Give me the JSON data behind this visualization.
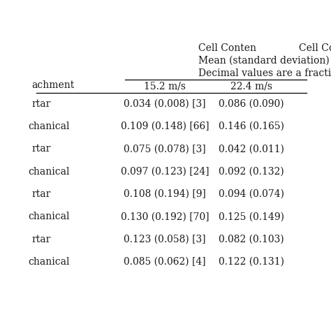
{
  "title_line1": "Cell Conten",
  "header1": "Mean (standard deviation)",
  "header2": "Decimal values are a fraction",
  "col_headers": [
    "15.2 m/s",
    "22.4 m/s"
  ],
  "row_labels": [
    "rtar",
    "chanical",
    "rtar",
    "chanical",
    "rtar",
    "chanical",
    "rtar",
    "chanical"
  ],
  "col1_data": [
    "0.034 (0.008) [3]",
    "0.109 (0.148) [66]",
    "0.075 (0.078) [3]",
    "0.097 (0.123) [24]",
    "0.108 (0.194) [9]",
    "0.130 (0.192) [70]",
    "0.123 (0.058) [3]",
    "0.085 (0.062) [4]"
  ],
  "col2_data": [
    "0.086 (0.090)",
    "0.146 (0.165)",
    "0.042 (0.011)",
    "0.092 (0.132)",
    "0.094 (0.074)",
    "0.125 (0.149)",
    "0.082 (0.103)",
    "0.122 (0.131)"
  ],
  "bg_color": "#ffffff",
  "text_color": "#1a1a1a",
  "font_size": 10.0
}
